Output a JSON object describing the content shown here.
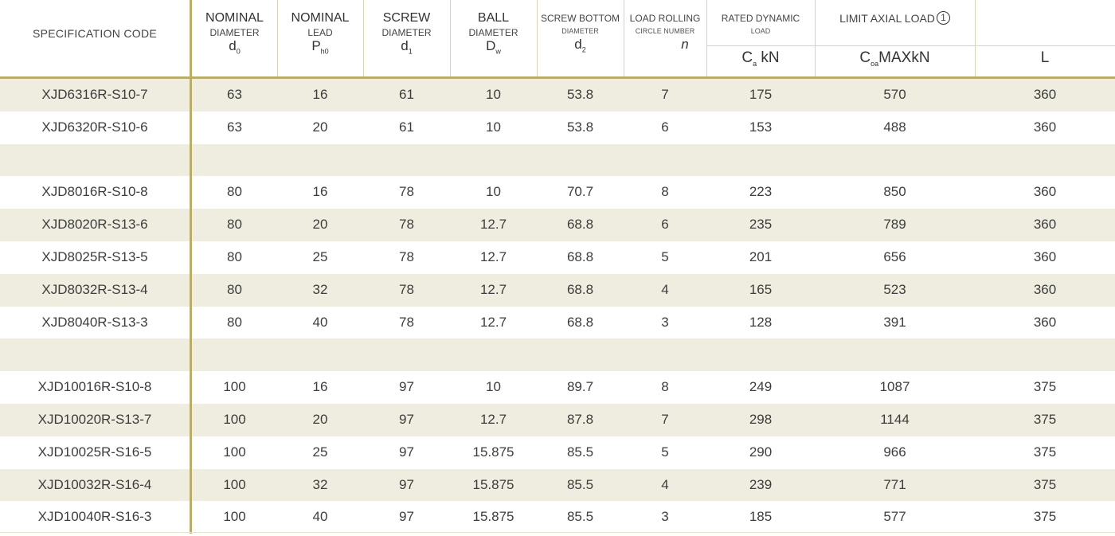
{
  "header": {
    "spec_code": "SPECIFICATION CODE",
    "nominal_diameter": {
      "line1": "NOMINAL",
      "line2": "DIAMETER",
      "symbol": "d",
      "sub": "0"
    },
    "nominal_lead": {
      "line1": "NOMINAL",
      "line2": "LEAD",
      "symbol": "P",
      "sub": "h0"
    },
    "screw_diameter": {
      "line1": "SCREW",
      "line2": "DIAMETER",
      "symbol": "d",
      "sub": "1"
    },
    "ball_diameter": {
      "line1": "BALL",
      "line2": "DIAMETER",
      "symbol": "D",
      "sub": "w"
    },
    "screw_bottom": {
      "line1": "SCREW BOTTOM",
      "line2": "DIAMETER",
      "symbol": "d",
      "sub": "2"
    },
    "load_rolling": {
      "line1": "LOAD ROLLING",
      "line2": "CIRCLE NUMBER",
      "symbol": "n"
    },
    "rated_dynamic": {
      "line1": "RATED DYNAMIC",
      "line2": "LOAD",
      "unit_symbol": "C",
      "unit_sub": "a",
      "unit_text": " kN"
    },
    "limit_axial": {
      "line1": "LIMIT AXIAL LOAD",
      "note": "1",
      "unit_symbol": "C",
      "unit_sub": "oa",
      "unit_text": "MAXkN"
    },
    "length": {
      "symbol": "L"
    }
  },
  "rows": [
    {
      "code": "XJD6316R-S10-7",
      "d0": "63",
      "ph": "16",
      "d1": "61",
      "dw": "10",
      "d2": "53.8",
      "n": "7",
      "ca": "175",
      "coa": "570",
      "L": "360"
    },
    {
      "code": "XJD6320R-S10-6",
      "d0": "63",
      "ph": "20",
      "d1": "61",
      "dw": "10",
      "d2": "53.8",
      "n": "6",
      "ca": "153",
      "coa": "488",
      "L": "360"
    },
    {
      "code": "",
      "d0": "",
      "ph": "",
      "d1": "",
      "dw": "",
      "d2": "",
      "n": "",
      "ca": "",
      "coa": "",
      "L": ""
    },
    {
      "code": "XJD8016R-S10-8",
      "d0": "80",
      "ph": "16",
      "d1": "78",
      "dw": "10",
      "d2": "70.7",
      "n": "8",
      "ca": "223",
      "coa": "850",
      "L": "360"
    },
    {
      "code": "XJD8020R-S13-6",
      "d0": "80",
      "ph": "20",
      "d1": "78",
      "dw": "12.7",
      "d2": "68.8",
      "n": "6",
      "ca": "235",
      "coa": "789",
      "L": "360"
    },
    {
      "code": "XJD8025R-S13-5",
      "d0": "80",
      "ph": "25",
      "d1": "78",
      "dw": "12.7",
      "d2": "68.8",
      "n": "5",
      "ca": "201",
      "coa": "656",
      "L": "360"
    },
    {
      "code": "XJD8032R-S13-4",
      "d0": "80",
      "ph": "32",
      "d1": "78",
      "dw": "12.7",
      "d2": "68.8",
      "n": "4",
      "ca": "165",
      "coa": "523",
      "L": "360"
    },
    {
      "code": "XJD8040R-S13-3",
      "d0": "80",
      "ph": "40",
      "d1": "78",
      "dw": "12.7",
      "d2": "68.8",
      "n": "3",
      "ca": "128",
      "coa": "391",
      "L": "360"
    },
    {
      "code": "",
      "d0": "",
      "ph": "",
      "d1": "",
      "dw": "",
      "d2": "",
      "n": "",
      "ca": "",
      "coa": "",
      "L": ""
    },
    {
      "code": "XJD10016R-S10-8",
      "d0": "100",
      "ph": "16",
      "d1": "97",
      "dw": "10",
      "d2": "89.7",
      "n": "8",
      "ca": "249",
      "coa": "1087",
      "L": "375"
    },
    {
      "code": "XJD10020R-S13-7",
      "d0": "100",
      "ph": "20",
      "d1": "97",
      "dw": "12.7",
      "d2": "87.8",
      "n": "7",
      "ca": "298",
      "coa": "1144",
      "L": "375"
    },
    {
      "code": "XJD10025R-S16-5",
      "d0": "100",
      "ph": "25",
      "d1": "97",
      "dw": "15.875",
      "d2": "85.5",
      "n": "5",
      "ca": "290",
      "coa": "966",
      "L": "375"
    },
    {
      "code": "XJD10032R-S16-4",
      "d0": "100",
      "ph": "32",
      "d1": "97",
      "dw": "15.875",
      "d2": "85.5",
      "n": "4",
      "ca": "239",
      "coa": "771",
      "L": "375"
    },
    {
      "code": "XJD10040R-S16-3",
      "d0": "100",
      "ph": "40",
      "d1": "97",
      "dw": "15.875",
      "d2": "85.5",
      "n": "3",
      "ca": "185",
      "coa": "577",
      "L": "375"
    }
  ],
  "colors": {
    "accent_gold": "#b9ad6a",
    "row_shade": "#efeddf",
    "grid_line": "#d8d4b8"
  }
}
